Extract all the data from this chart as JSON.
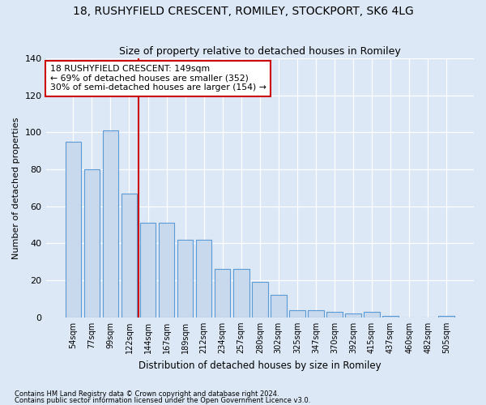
{
  "title1": "18, RUSHYFIELD CRESCENT, ROMILEY, STOCKPORT, SK6 4LG",
  "title2": "Size of property relative to detached houses in Romiley",
  "xlabel": "Distribution of detached houses by size in Romiley",
  "ylabel": "Number of detached properties",
  "footer1": "Contains HM Land Registry data © Crown copyright and database right 2024.",
  "footer2": "Contains public sector information licensed under the Open Government Licence v3.0.",
  "categories": [
    "54sqm",
    "77sqm",
    "99sqm",
    "122sqm",
    "144sqm",
    "167sqm",
    "189sqm",
    "212sqm",
    "234sqm",
    "257sqm",
    "280sqm",
    "302sqm",
    "325sqm",
    "347sqm",
    "370sqm",
    "392sqm",
    "415sqm",
    "437sqm",
    "460sqm",
    "482sqm",
    "505sqm"
  ],
  "values": [
    95,
    80,
    101,
    67,
    51,
    51,
    42,
    42,
    26,
    26,
    19,
    12,
    4,
    4,
    3,
    2,
    3,
    1,
    0,
    0,
    1
  ],
  "bar_color": "#c8d9ed",
  "bar_edge_color": "#5b9bd5",
  "vline_x": 3.5,
  "vline_color": "#cc0000",
  "annotation_text": "18 RUSHYFIELD CRESCENT: 149sqm\n← 69% of detached houses are smaller (352)\n30% of semi-detached houses are larger (154) →",
  "annotation_box_color": "#ffffff",
  "annotation_box_edge": "#cc0000",
  "ylim": [
    0,
    140
  ],
  "yticks": [
    0,
    20,
    40,
    60,
    80,
    100,
    120,
    140
  ],
  "bg_color": "#dce8f5",
  "plot_bg_color": "#dce8f5",
  "grid_color": "#ffffff",
  "title1_fontsize": 10,
  "title2_fontsize": 9
}
